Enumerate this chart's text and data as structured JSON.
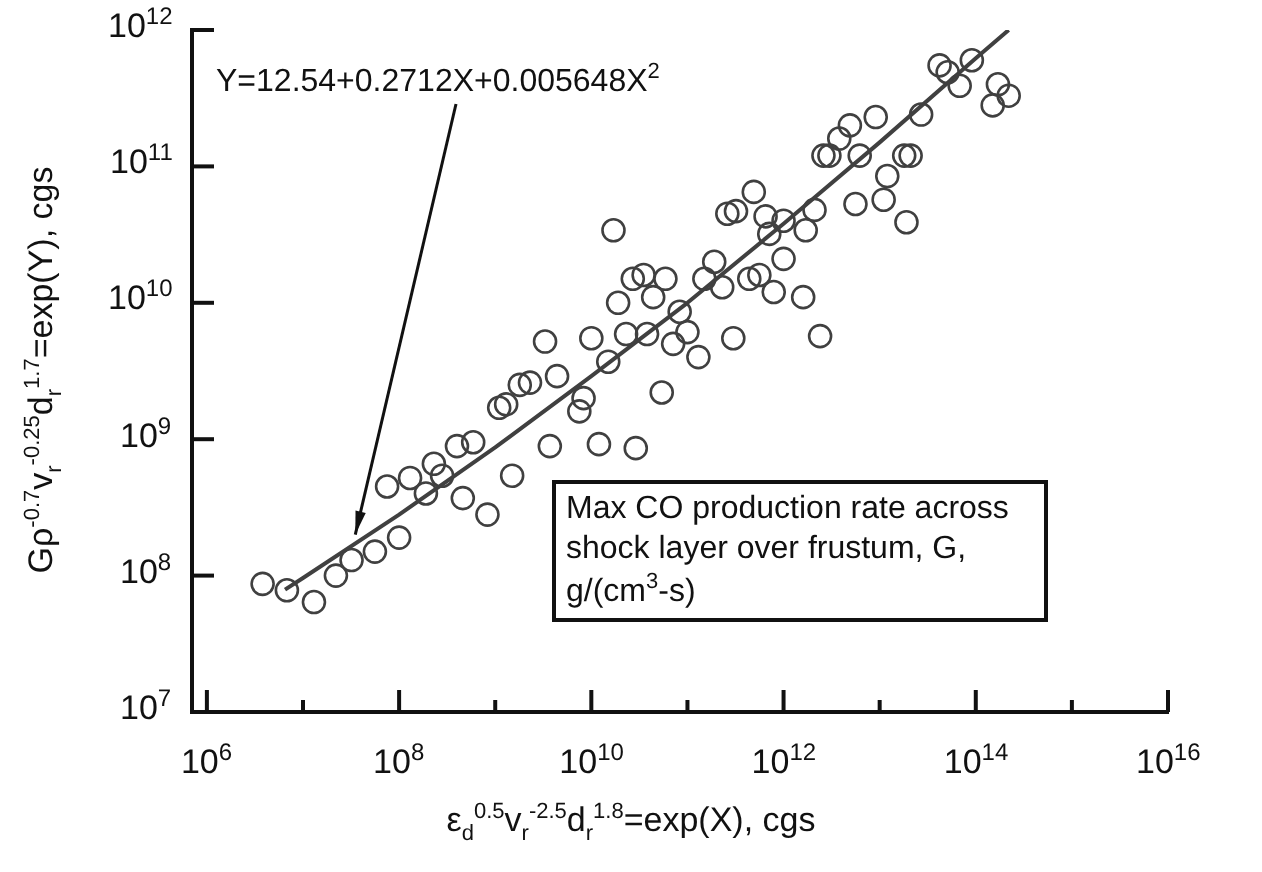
{
  "chart_data": {
    "type": "scatter",
    "log": "xy",
    "marker": "circle",
    "xlabel": "ε$_{d}$$^{0.5}$v$_{r}$$^{-2.5}$d$_{r}$$^{1.8}$=exp(X), cgs",
    "ylabel": "Gρ$^{-0.7}$v$_{r}$$^{-0.25}$d$_{r}$$^{1.7}$=exp(Y), cgs",
    "xlim": [
      700000,
      1e+16
    ],
    "ylim": [
      10000000.0,
      1000000000000.0
    ],
    "xticks": [
      {
        "value": 1000000.0,
        "label": "10$^{6}$"
      },
      {
        "value": 10000000.0,
        "label": null
      },
      {
        "value": 100000000.0,
        "label": "10$^{8}$"
      },
      {
        "value": 1000000000.0,
        "label": null
      },
      {
        "value": 10000000000.0,
        "label": "10$^{10}$"
      },
      {
        "value": 100000000000.0,
        "label": null
      },
      {
        "value": 1000000000000.0,
        "label": "10$^{12}$"
      },
      {
        "value": 10000000000000.0,
        "label": null
      },
      {
        "value": 100000000000000.0,
        "label": "10$^{14}$"
      },
      {
        "value": 1000000000000000.0,
        "label": null
      },
      {
        "value": 1e+16,
        "label": "10$^{16}$"
      }
    ],
    "yticks": [
      {
        "value": 10000000.0,
        "label": "10$^{7}$"
      },
      {
        "value": 100000000.0,
        "label": "10$^{8}$"
      },
      {
        "value": 1000000000.0,
        "label": "10$^{9}$"
      },
      {
        "value": 10000000000.0,
        "label": "10$^{10}$"
      },
      {
        "value": 100000000000.0,
        "label": "10$^{11}$"
      },
      {
        "value": 1000000000000.0,
        "label": "10$^{12}$"
      }
    ],
    "annotations": [
      {
        "text": "Y=12.54+0.2712X+0.005648X$^{2}$",
        "x": 35000000,
        "y": 200000000
      },
      "Max CO production rate across shock layer over frustum, G, g/(cm$^{3}$-s)"
    ],
    "series": [
      {
        "color": "#404040",
        "x": [
          3800000.0,
          6800000.0,
          13000000.0,
          22000000.0,
          32000000.0,
          56000000.0,
          100000000.0,
          75000000.0,
          130000000.0,
          190000000.0,
          230000000.0,
          280000000.0,
          400000000.0,
          590000000.0,
          460000000.0,
          830000000.0,
          1500000000.0,
          1100000000.0,
          1300000000.0,
          1800000000.0,
          2300000000.0,
          4400000000.0,
          8300000000.0,
          7500000000.0,
          3700000000.0,
          12000000000.0,
          29000000000.0,
          54000000000.0,
          3300000000.0,
          10000000000.0,
          15000000000.0,
          23000000000.0,
          38000000000.0,
          71000000000.0,
          100000000000.0,
          130000000000.0,
          300000000000.0,
          83000000000.0,
          44000000000.0,
          19000000000.0,
          27000000000.0,
          35000000000.0,
          59000000000.0,
          150000000000.0,
          190000000000.0,
          230000000000.0,
          440000000000.0,
          560000000000.0,
          790000000000.0,
          1000000000000.0,
          17000000000.0,
          260000000000.0,
          320000000000.0,
          490000000000.0,
          650000000000.0,
          710000000000.0,
          1000000000000.0,
          2100000000000.0,
          42000000000000.0,
          51000000000000.0,
          91000000000000.0,
          68000000000000.0,
          170000000000000.0,
          220000000000000.0,
          150000000000000.0,
          27000000000000.0,
          9100000000000.0,
          4900000000000.0,
          3800000000000.0,
          3000000000000.0,
          2600000000000.0,
          6200000000000.0,
          18000000000000.0,
          21000000000000.0,
          12000000000000.0,
          11000000000000.0,
          5600000000000.0,
          19000000000000.0,
          1700000000000.0,
          1600000000000.0,
          2400000000000.0
        ],
        "values": [
          87000000.0,
          78000000.0,
          64000000.0,
          100000000.0,
          130000000.0,
          150000000.0,
          190000000.0,
          450000000.0,
          520000000.0,
          400000000.0,
          660000000.0,
          540000000.0,
          890000000.0,
          950000000.0,
          370000000.0,
          280000000.0,
          540000000.0,
          1700000000.0,
          1800000000.0,
          2500000000.0,
          2600000000.0,
          2900000000.0,
          2000000000.0,
          1600000000.0,
          890000000.0,
          920000000.0,
          860000000.0,
          2200000000.0,
          5200000000.0,
          5500000000.0,
          3700000000.0,
          5900000000.0,
          5900000000.0,
          5000000000.0,
          6100000000.0,
          4000000000.0,
          5500000000.0,
          8600000000.0,
          11000000000.0,
          10000000000.0,
          15000000000.0,
          16000000000.0,
          15000000000.0,
          15000000000.0,
          20000000000.0,
          13000000000.0,
          15000000000.0,
          16000000000.0,
          12000000000.0,
          21000000000.0,
          34000000000.0,
          45000000000.0,
          47000000000.0,
          65000000000.0,
          43000000000.0,
          32000000000.0,
          40000000000.0,
          48000000000.0,
          550000000000.0,
          490000000000.0,
          600000000000.0,
          390000000000.0,
          400000000000.0,
          330000000000.0,
          280000000000.0,
          240000000000.0,
          230000000000.0,
          200000000000.0,
          160000000000.0,
          120000000000.0,
          120000000000.0,
          120000000000.0,
          120000000000.0,
          120000000000.0,
          85000000000.0,
          57000000000.0,
          53000000000.0,
          39000000000.0,
          34000000000.0,
          11000000000.0,
          5700000000.0
        ]
      },
      {
        "type": "line",
        "color": "#404040",
        "marker": "none",
        "x": [
          6500000.0,
          10000000.0,
          100000000.0,
          1000000000.0,
          10000000000.0,
          100000000000.0,
          1000000000000.0,
          10000000000000.0,
          100000000000000.0,
          220000000000000.0
        ],
        "values": [
          79000000.0,
          96000000.0,
          280000000.0,
          870000000.0,
          2900000000.0,
          10000000000.0,
          38000000000.0,
          150000000000.0,
          620000000000.0,
          1000000000000.0
        ]
      }
    ]
  }
}
